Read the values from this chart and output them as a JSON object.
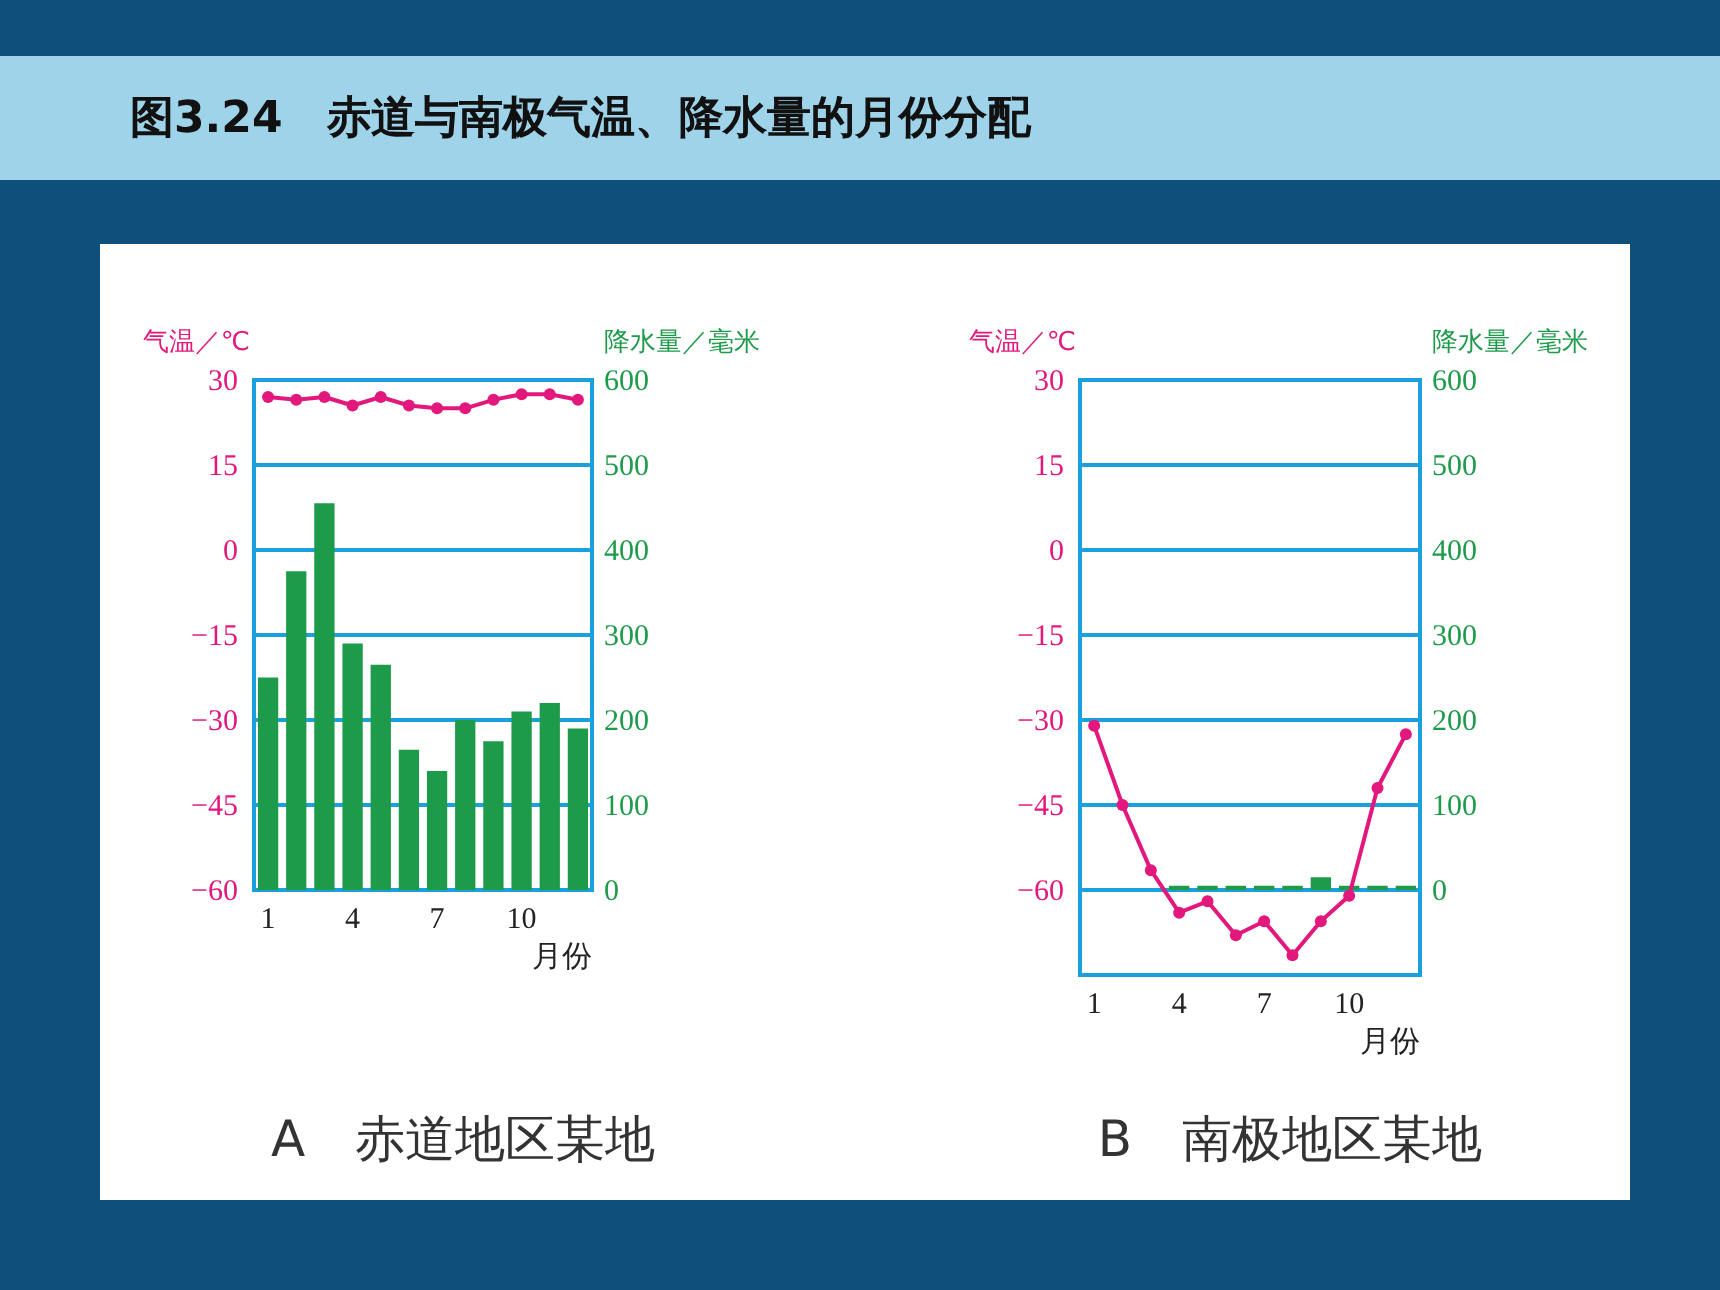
{
  "chart_data": [
    {
      "type": "bar",
      "title": "A　赤道地区某地",
      "annotations": [
        "图3.24　赤道与南极气温、降水量的月份分配"
      ],
      "xlabel": "月份",
      "ylabel": "气温／℃",
      "y2label": "降水量／毫米",
      "categories": [
        "1",
        null,
        null,
        "4",
        null,
        null,
        "7",
        null,
        null,
        "10",
        null,
        null
      ],
      "ylim": [
        -60,
        30
      ],
      "yticks": [
        -60,
        -45,
        -30,
        -15,
        0,
        15,
        30
      ],
      "y2lim": [
        0,
        600
      ],
      "y2ticks": [
        0,
        100,
        200,
        300,
        400,
        500,
        600
      ],
      "grid": "y",
      "series": [
        {
          "axis": "y2",
          "color": "#1e9b4a",
          "values": [
            250,
            375,
            455,
            290,
            265,
            165,
            140,
            200,
            175,
            210,
            220,
            190
          ]
        },
        {
          "type": "line",
          "axis": "y",
          "color": "#e2187c",
          "marker": "circle",
          "values": [
            27,
            26.5,
            27,
            25.5,
            27,
            25.5,
            25,
            25,
            26.5,
            27.5,
            27.5,
            26.5
          ]
        }
      ]
    },
    {
      "type": "bar",
      "title": "B　南极地区某地",
      "xlabel": "月份",
      "ylabel": "气温／℃",
      "y2label": "降水量／毫米",
      "categories": [
        "1",
        null,
        null,
        "4",
        null,
        null,
        "7",
        null,
        null,
        "10",
        null,
        null
      ],
      "ylim": [
        -75,
        30
      ],
      "yticks": [
        -60,
        -45,
        -30,
        -15,
        0,
        15,
        30
      ],
      "y2lim": [
        -100,
        600
      ],
      "y2ticks": [
        0,
        100,
        200,
        300,
        400,
        500,
        600
      ],
      "grid": "y",
      "series": [
        {
          "axis": "y2",
          "color": "#1e9b4a",
          "values": [
            0,
            0,
            0,
            5,
            5,
            5,
            5,
            5,
            15,
            5,
            5,
            5
          ]
        },
        {
          "type": "line",
          "axis": "y",
          "color": "#e2187c",
          "marker": "circle",
          "values": [
            -31,
            -45,
            -56.5,
            -64,
            -62,
            -68,
            -65.5,
            -71.5,
            -65.5,
            -61,
            -42,
            -32.5
          ]
        }
      ]
    }
  ]
}
